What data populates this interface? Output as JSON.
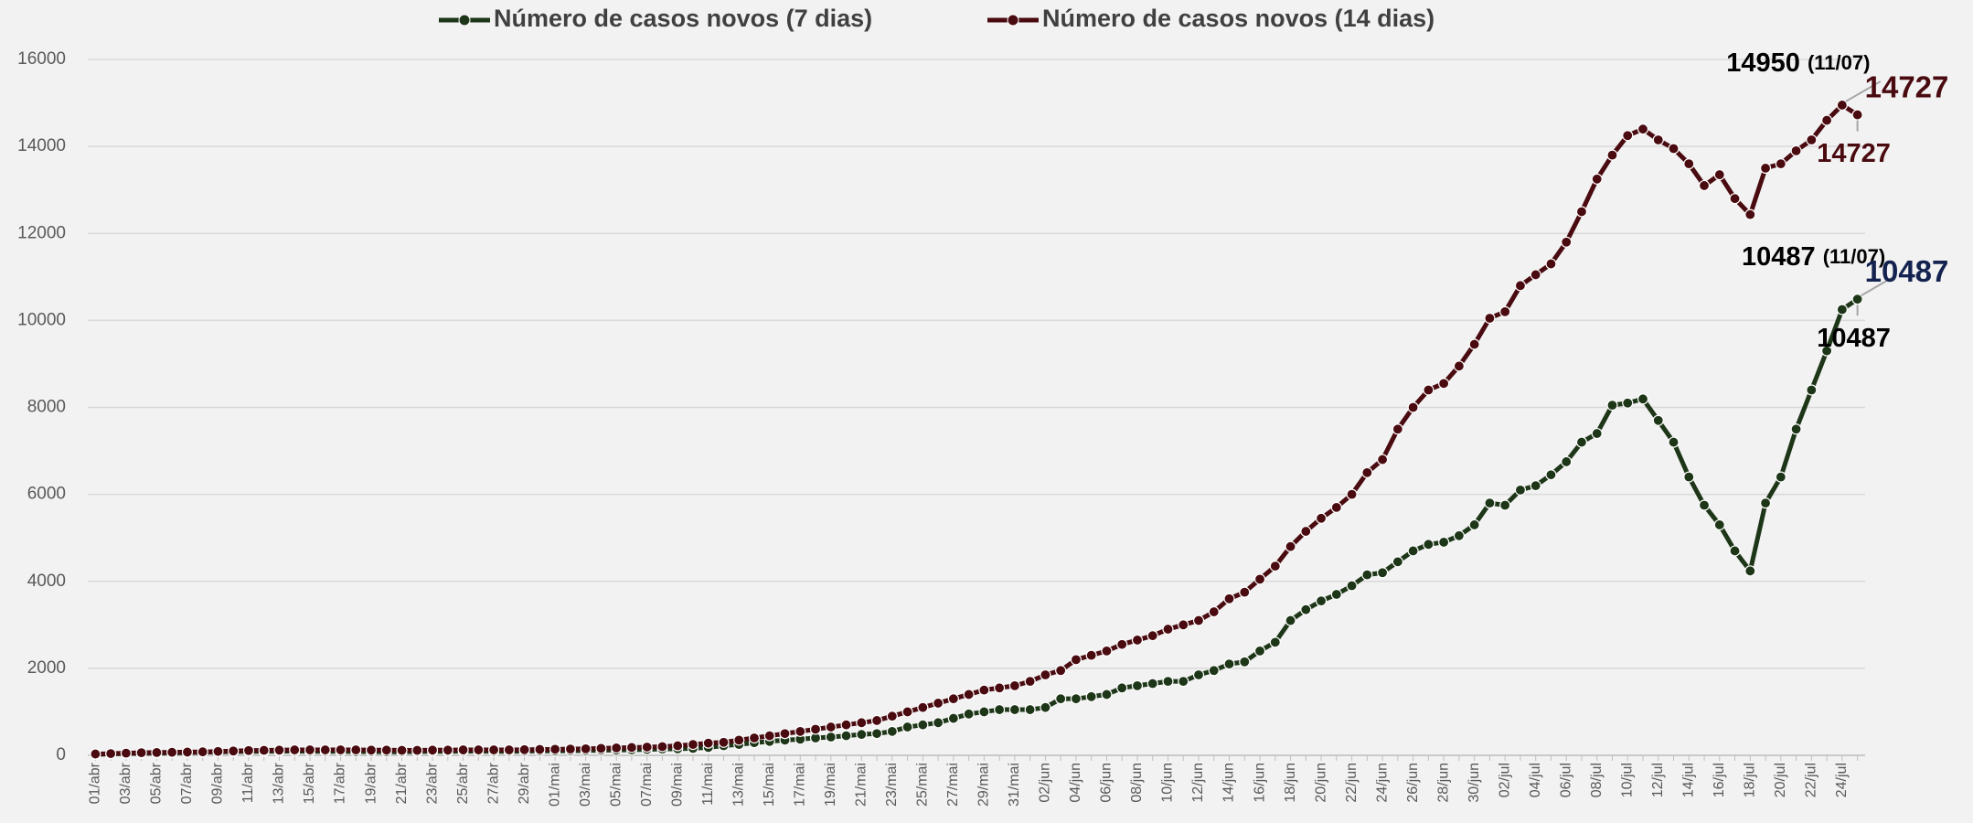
{
  "chart_data": {
    "type": "line",
    "categories": [
      "01/abr",
      null,
      "03/abr",
      null,
      "05/abr",
      null,
      "07/abr",
      null,
      "09/abr",
      null,
      "11/abr",
      null,
      "13/abr",
      null,
      "15/abr",
      null,
      "17/abr",
      null,
      "19/abr",
      null,
      "21/abr",
      null,
      "23/abr",
      null,
      "25/abr",
      null,
      "27/abr",
      null,
      "29/abr",
      null,
      "01/mai",
      null,
      "03/mai",
      null,
      "05/mai",
      null,
      "07/mai",
      null,
      "09/mai",
      null,
      "11/mai",
      null,
      "13/mai",
      null,
      "15/mai",
      null,
      "17/mai",
      null,
      "19/mai",
      null,
      "21/mai",
      null,
      "23/mai",
      null,
      "25/mai",
      null,
      "27/mai",
      null,
      "29/mai",
      null,
      "31/mai",
      null,
      "02/jun",
      null,
      "04/jun",
      null,
      "06/jun",
      null,
      "08/jun",
      null,
      "10/jun",
      null,
      "12/jun",
      null,
      "14/jun",
      null,
      "16/jun",
      null,
      "18/jun",
      null,
      "20/jun",
      null,
      "22/jun",
      null,
      "24/jun",
      null,
      "26/jun",
      null,
      "28/jun",
      null,
      "30/jun",
      null,
      "02/jul",
      null,
      "04/jul",
      null,
      "06/jul",
      null,
      "08/jul",
      null,
      "10/jul",
      null,
      "12/jul",
      null,
      "14/jul",
      null,
      "16/jul",
      null,
      "18/jul",
      null,
      "20/jul",
      null,
      "22/jul",
      null,
      "24/jul",
      null
    ],
    "series": [
      {
        "name": "Número de casos novos (7 dias)",
        "color": "#1e3618",
        "last_label_color": "#14224f",
        "min_label_color": "#000000",
        "annotation": "(11/07)",
        "values": [
          20,
          30,
          40,
          45,
          50,
          55,
          60,
          70,
          80,
          85,
          90,
          90,
          95,
          95,
          90,
          90,
          90,
          85,
          85,
          80,
          80,
          85,
          90,
          90,
          95,
          95,
          90,
          90,
          95,
          100,
          100,
          105,
          110,
          115,
          120,
          125,
          135,
          145,
          150,
          160,
          180,
          220,
          250,
          290,
          320,
          350,
          370,
          400,
          420,
          450,
          480,
          500,
          550,
          650,
          700,
          750,
          850,
          950,
          1000,
          1050,
          1050,
          1050,
          1100,
          1300,
          1300,
          1350,
          1400,
          1550,
          1600,
          1650,
          1700,
          1700,
          1850,
          1950,
          2100,
          2150,
          2400,
          2600,
          3100,
          3350,
          3550,
          3700,
          3900,
          4150,
          4200,
          4450,
          4700,
          4850,
          4900,
          5050,
          5300,
          5800,
          5750,
          6100,
          6200,
          6450,
          6750,
          7200,
          7400,
          8050,
          8100,
          8193,
          7700,
          7200,
          6400,
          5750,
          5300,
          4700,
          4240,
          5800,
          6400,
          7500,
          8400,
          9300,
          10250,
          10487
        ]
      },
      {
        "name": "Número de casos novos (14 dias)",
        "color": "#4a0b10",
        "last_label_color": "#4a0b10",
        "min_label_color": "#4a0b10",
        "annotation": "(11/07)",
        "values": [
          30,
          40,
          50,
          60,
          65,
          70,
          75,
          80,
          90,
          100,
          110,
          115,
          120,
          125,
          125,
          125,
          125,
          125,
          120,
          120,
          115,
          115,
          120,
          120,
          125,
          125,
          125,
          125,
          130,
          135,
          140,
          145,
          150,
          160,
          170,
          180,
          190,
          200,
          220,
          250,
          280,
          300,
          350,
          400,
          450,
          500,
          550,
          600,
          650,
          700,
          750,
          800,
          900,
          1000,
          1100,
          1200,
          1300,
          1400,
          1500,
          1550,
          1600,
          1700,
          1850,
          1950,
          2200,
          2300,
          2400,
          2550,
          2650,
          2750,
          2900,
          3000,
          3100,
          3300,
          3600,
          3750,
          4050,
          4350,
          4800,
          5150,
          5450,
          5700,
          6000,
          6500,
          6800,
          7500,
          8000,
          8400,
          8550,
          8950,
          9450,
          10050,
          10200,
          10800,
          11050,
          11300,
          11800,
          12500,
          13250,
          13800,
          14250,
          14398,
          14150,
          13950,
          13600,
          13100,
          13350,
          12800,
          12433,
          13500,
          13600,
          13900,
          14150,
          14600,
          14950,
          14727
        ]
      }
    ],
    "ylim": [
      0,
      16000
    ],
    "yticks": [
      0,
      2000,
      4000,
      6000,
      8000,
      10000,
      12000,
      14000,
      16000
    ],
    "grid": true,
    "legend": "top"
  }
}
